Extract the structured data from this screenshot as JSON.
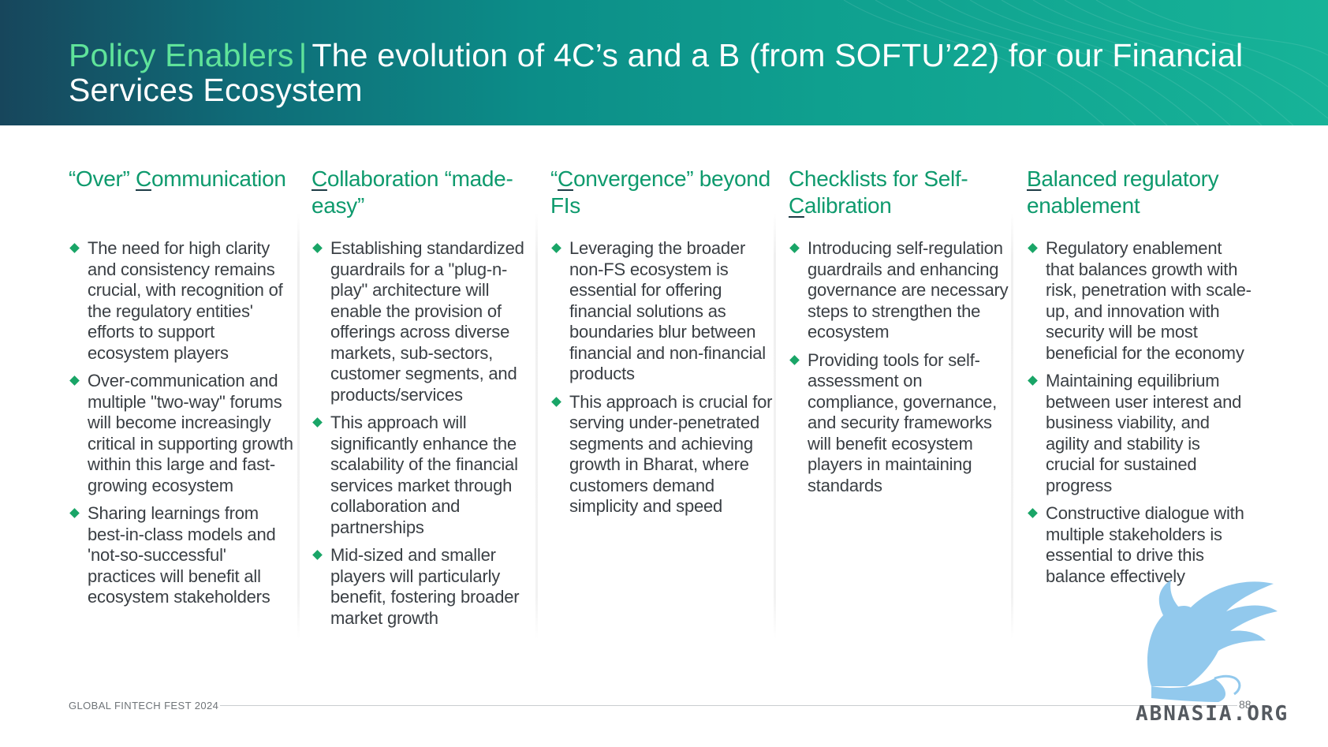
{
  "header": {
    "title_accent": "Policy Enablers",
    "title_separator": "|",
    "title_main": "The evolution of 4C’s and a B (from SOFTU’22) for our Financial Services Ecosystem"
  },
  "columns": [
    {
      "title_pre": "“Over” ",
      "title_letter": "C",
      "title_post": "ommunication",
      "bullets": [
        "The need for high clarity and consistency remains crucial, with recognition of the regulatory entities' efforts to support ecosystem players",
        "Over-communication and multiple \"two-way\" forums will become increasingly critical in supporting growth within this large and fast-growing ecosystem",
        "Sharing learnings from best-in-class models and 'not-so-successful' practices will benefit all ecosystem stakeholders"
      ]
    },
    {
      "title_pre": "",
      "title_letter": "C",
      "title_post": "ollaboration “made-easy”",
      "bullets": [
        "Establishing standardized guardrails for a \"plug-n-play\" architecture will enable the provision of offerings across diverse markets, sub-sectors, customer segments, and products/services",
        "This approach will significantly enhance the scalability of the financial services market through collaboration and partnerships",
        "Mid-sized and smaller players will particularly benefit, fostering broader market growth"
      ]
    },
    {
      "title_pre": "“",
      "title_letter": "C",
      "title_post": "onvergence” beyond FIs",
      "bullets": [
        "Leveraging the broader non-FS ecosystem is essential for offering financial solutions as boundaries blur between financial and non-financial products",
        "This approach is crucial for serving under-penetrated segments and achieving growth in Bharat, where customers demand simplicity and speed"
      ]
    },
    {
      "title_pre": "Checklists for Self-",
      "title_letter": "C",
      "title_post": "alibration",
      "bullets": [
        "Introducing self-regulation guardrails and enhancing governance are necessary steps to strengthen the ecosystem",
        "Providing tools for self-assessment on compliance, governance, and security frameworks will benefit ecosystem players in maintaining standards"
      ]
    },
    {
      "title_pre": "",
      "title_letter": "B",
      "title_post": "alanced regulatory enablement",
      "bullets": [
        "Regulatory enablement that balances growth with risk, penetration with scale-up, and innovation with security will be most beneficial for the economy",
        "Maintaining equilibrium between user interest and business viability, and agility and stability is crucial for sustained progress",
        "Constructive dialogue with multiple stakeholders is essential to drive this balance effectively"
      ]
    }
  ],
  "footer": {
    "label": "GLOBAL FINTECH FEST 2024",
    "page_number": "88"
  },
  "watermark": {
    "text": "ABNASIA.ORG"
  },
  "colors": {
    "accent_green": "#0e9a6d",
    "bullet_green": "#19a567",
    "title_highlight": "#5fe39a"
  }
}
